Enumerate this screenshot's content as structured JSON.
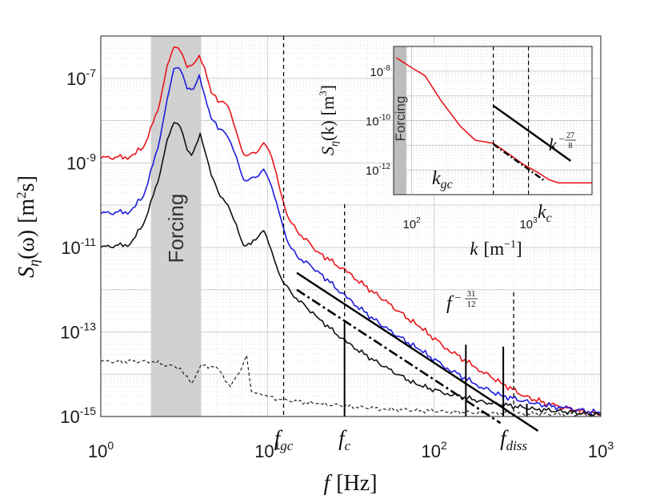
{
  "chart_data": [
    {
      "type": "line",
      "xscale": "log",
      "yscale": "log",
      "xlim": [
        1,
        1000
      ],
      "ylim": [
        1e-15,
        1e-06
      ],
      "xticks": [
        {
          "base": "10",
          "exp": "0"
        },
        {
          "base": "10",
          "exp": "1"
        },
        {
          "base": "10",
          "exp": "2"
        },
        {
          "base": "10",
          "exp": "3"
        }
      ],
      "yticks": [
        {
          "base": "10",
          "exp": "-15"
        },
        {
          "base": "10",
          "exp": "-13"
        },
        {
          "base": "10",
          "exp": "-11"
        },
        {
          "base": "10",
          "exp": "-9"
        },
        {
          "base": "10",
          "exp": "-7"
        }
      ],
      "xlabel": {
        "symbol": "f",
        "unit": "[Hz]"
      },
      "ylabel": {
        "symbol": "S",
        "sub": "η",
        "arg": "(ω)",
        "unit": "[m",
        "sup": "2",
        "unit_end": "s]"
      },
      "grid": true,
      "forcing_band": {
        "range": [
          2,
          4
        ],
        "label": "Forcing"
      },
      "vlines": [
        {
          "x": 12.5,
          "label": "f",
          "sub": "gc"
        },
        {
          "x": 29,
          "label": "f",
          "sub": "c"
        },
        {
          "x": 300,
          "label": "f",
          "sub": "diss"
        }
      ],
      "powerlaw": {
        "label": "f",
        "exp_num": "31",
        "exp_den": "12",
        "slope": -2.583,
        "x_range": [
          15,
          420
        ],
        "y_start": 2.5e-12
      },
      "fit_dashdot": {
        "slope": -2.583,
        "x_range": [
          15,
          250
        ],
        "y_start": 1e-12
      },
      "series": [
        {
          "name": "red",
          "color": "#e8161b",
          "points": [
            [
              1,
              1.3e-09
            ],
            [
              1.5,
              1.4e-09
            ],
            [
              1.8,
              2.3e-09
            ],
            [
              2.2,
              1.7e-08
            ],
            [
              2.5,
              2e-07
            ],
            [
              2.75,
              5.5e-07
            ],
            [
              3,
              4.4e-07
            ],
            [
              3.3,
              1.8e-07
            ],
            [
              3.6,
              2.2e-07
            ],
            [
              3.9,
              3.5e-07
            ],
            [
              4.2,
              1.8e-07
            ],
            [
              4.6,
              4.5e-08
            ],
            [
              5.2,
              2.8e-08
            ],
            [
              5.8,
              2.2e-08
            ],
            [
              6.5,
              5.5e-09
            ],
            [
              7.2,
              1.6e-09
            ],
            [
              8.5,
              1.7e-09
            ],
            [
              9.5,
              3e-09
            ],
            [
              10.2,
              2e-09
            ],
            [
              11,
              8e-10
            ],
            [
              12,
              2e-10
            ],
            [
              13,
              6.4e-11
            ],
            [
              15,
              2.5e-11
            ],
            [
              20,
              8e-12
            ],
            [
              30,
              2.6e-12
            ],
            [
              50,
              5.6e-13
            ],
            [
              80,
              1.4e-13
            ],
            [
              120,
              4e-14
            ],
            [
              180,
              1.4e-14
            ],
            [
              250,
              6.4e-15
            ],
            [
              350,
              3e-15
            ],
            [
              500,
              1.9e-15
            ],
            [
              700,
              1.4e-15
            ],
            [
              1000,
              1.1e-15
            ]
          ]
        },
        {
          "name": "blue",
          "color": "#1d1ddd",
          "points": [
            [
              1,
              6.3e-11
            ],
            [
              1.5,
              7.1e-11
            ],
            [
              1.8,
              1.6e-10
            ],
            [
              2.2,
              2.2e-09
            ],
            [
              2.5,
              3.2e-08
            ],
            [
              2.75,
              1.7e-07
            ],
            [
              3,
              1.6e-07
            ],
            [
              3.3,
              5.6e-08
            ],
            [
              3.6,
              5.6e-08
            ],
            [
              3.9,
              1.2e-07
            ],
            [
              4.2,
              4e-08
            ],
            [
              4.6,
              1.1e-08
            ],
            [
              5.2,
              6.3e-09
            ],
            [
              5.8,
              4e-09
            ],
            [
              6.5,
              1.4e-09
            ],
            [
              7.2,
              4e-10
            ],
            [
              8.5,
              4.5e-10
            ],
            [
              9.5,
              7.1e-10
            ],
            [
              10.2,
              4e-10
            ],
            [
              11,
              1.6e-10
            ],
            [
              12,
              5e-11
            ],
            [
              13,
              1.6e-11
            ],
            [
              15,
              6.3e-12
            ],
            [
              20,
              2.8e-12
            ],
            [
              30,
              6.3e-13
            ],
            [
              50,
              1.3e-13
            ],
            [
              80,
              4e-14
            ],
            [
              120,
              1.4e-14
            ],
            [
              180,
              5.6e-15
            ],
            [
              250,
              3.2e-15
            ],
            [
              400,
              2e-15
            ],
            [
              600,
              1.6e-15
            ],
            [
              1000,
              1.2e-15
            ]
          ]
        },
        {
          "name": "black",
          "color": "#111111",
          "points": [
            [
              1,
              1e-11
            ],
            [
              1.5,
              1.2e-11
            ],
            [
              1.8,
              3.5e-11
            ],
            [
              2.2,
              3.5e-10
            ],
            [
              2.5,
              3.5e-09
            ],
            [
              2.75,
              9e-09
            ],
            [
              3,
              7e-09
            ],
            [
              3.3,
              2e-09
            ],
            [
              3.5,
              1.5e-09
            ],
            [
              3.7,
              2.5e-09
            ],
            [
              3.95,
              5e-09
            ],
            [
              4.2,
              2e-09
            ],
            [
              4.6,
              5e-10
            ],
            [
              5.2,
              1.6e-10
            ],
            [
              5.8,
              1e-10
            ],
            [
              6.5,
              3.5e-11
            ],
            [
              7.2,
              1.1e-11
            ],
            [
              8.5,
              1.5e-11
            ],
            [
              9.5,
              2.5e-11
            ],
            [
              10.2,
              1.2e-11
            ],
            [
              11,
              5e-12
            ],
            [
              12,
              2e-12
            ],
            [
              14,
              8e-13
            ],
            [
              20,
              2.2e-13
            ],
            [
              30,
              5.5e-14
            ],
            [
              50,
              1.5e-14
            ],
            [
              80,
              5.5e-15
            ],
            [
              120,
              3.5e-15
            ],
            [
              200,
              2.2e-15
            ],
            [
              400,
              1.5e-15
            ],
            [
              1000,
              1.1e-15
            ]
          ]
        },
        {
          "name": "noise",
          "color": "#111111",
          "dashed": true,
          "points": [
            [
              1,
              2e-14
            ],
            [
              2,
              2e-14
            ],
            [
              3,
              1.4e-14
            ],
            [
              3.5,
              6e-15
            ],
            [
              4,
              1.7e-14
            ],
            [
              5,
              1.4e-14
            ],
            [
              6,
              5e-15
            ],
            [
              7,
              1.4e-14
            ],
            [
              7.5,
              2.8e-14
            ],
            [
              8,
              4e-15
            ],
            [
              9,
              3.5e-15
            ],
            [
              10,
              3e-15
            ],
            [
              12,
              2.5e-15
            ],
            [
              20,
              2e-15
            ],
            [
              50,
              1.5e-15
            ],
            [
              200,
              1.2e-15
            ],
            [
              1000,
              1.1e-15
            ]
          ]
        }
      ],
      "spikes": [
        {
          "x": 29,
          "y": 1.6e-13
        },
        {
          "x": 155,
          "y": 5e-14
        },
        {
          "x": 260,
          "y": 4.5e-14
        },
        {
          "x": 360,
          "y": 2e-15
        }
      ]
    },
    {
      "type": "line",
      "role": "inset",
      "xscale": "log",
      "yscale": "log",
      "xlim": [
        70,
        3500
      ],
      "ylim": [
        1e-13,
        1e-07
      ],
      "xticks": [
        {
          "base": "10",
          "exp": "2"
        },
        {
          "base": "10",
          "exp": "3"
        }
      ],
      "yticks": [
        {
          "base": "10",
          "exp": "-12"
        },
        {
          "base": "10",
          "exp": "-10"
        },
        {
          "base": "10",
          "exp": "-8"
        }
      ],
      "xlabel": {
        "symbol": "k",
        "unit": "[m",
        "sup": "−1",
        "unit_end": "]"
      },
      "ylabel": {
        "symbol": "S",
        "sub": "η",
        "arg": "(k)",
        "unit": "[m",
        "sup": "3",
        "unit_end": "]"
      },
      "forcing_band": {
        "range": [
          70,
          90
        ],
        "label": "Forcing"
      },
      "vlines": [
        {
          "x": 500,
          "label": "k",
          "sub": "gc"
        },
        {
          "x": 1000,
          "label": "k",
          "sub": "c"
        }
      ],
      "powerlaw": {
        "label": "k",
        "exp_num": "27",
        "exp_den": "8",
        "slope": -3.375,
        "x_range": [
          500,
          2300
        ],
        "y_start": 4e-10
      },
      "series": [
        {
          "name": "red",
          "color": "#e8161b",
          "points": [
            [
              74,
              3.5e-08
            ],
            [
              95,
              1.6e-08
            ],
            [
              130,
              6.5e-09
            ],
            [
              180,
              6e-10
            ],
            [
              260,
              6e-11
            ],
            [
              350,
              1.6e-11
            ],
            [
              500,
              1.2e-11
            ],
            [
              700,
              4e-12
            ],
            [
              900,
              1.7e-12
            ],
            [
              1200,
              8e-13
            ],
            [
              1500,
              4e-13
            ],
            [
              1800,
              3e-13
            ],
            [
              2500,
              3e-13
            ],
            [
              3500,
              3e-13
            ]
          ]
        }
      ],
      "fit_dashdot": {
        "slope": -3.375,
        "x_range": [
          500,
          1350
        ],
        "y_start": 1.1e-11
      }
    }
  ]
}
